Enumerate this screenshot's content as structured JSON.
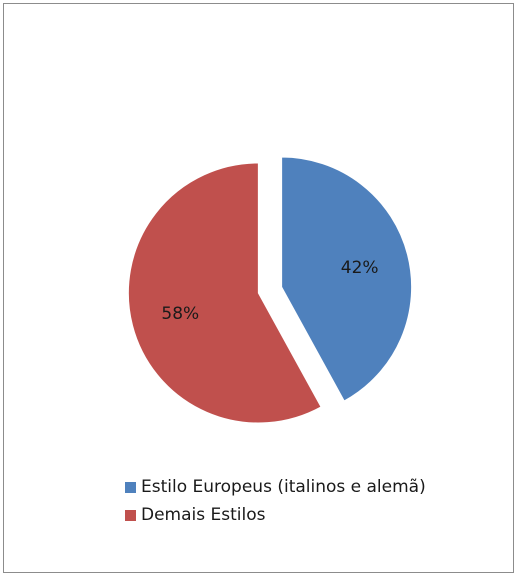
{
  "chart_data": {
    "type": "pie",
    "title": "",
    "exploded": true,
    "legend_position": "bottom",
    "slices": [
      {
        "label": "Estilo Europeus (italinos e alemã)",
        "value": 42,
        "value_label": "42%",
        "color": "#4f81bd"
      },
      {
        "label": "Demais Estilos",
        "value": 58,
        "value_label": "58%",
        "color": "#c0504d"
      }
    ]
  }
}
